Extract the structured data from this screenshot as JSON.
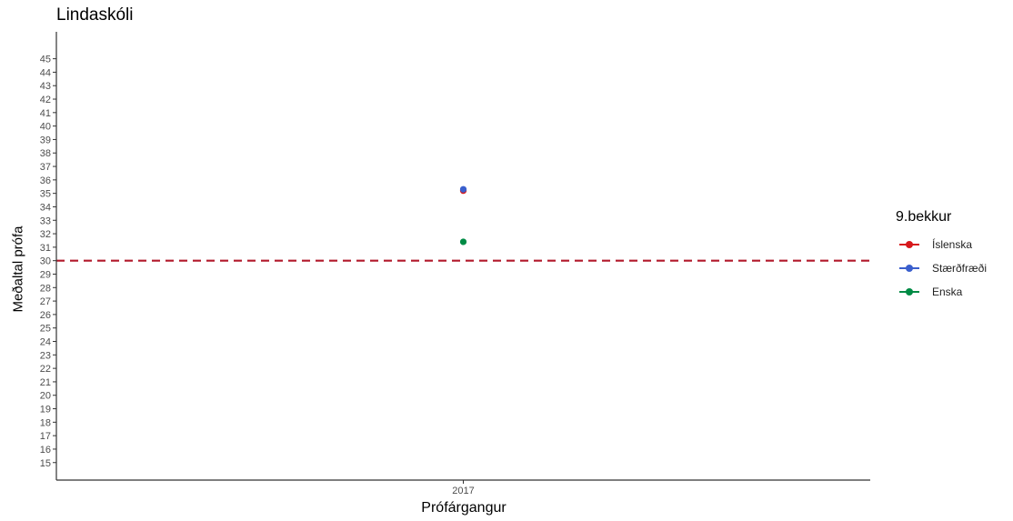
{
  "chart_data": {
    "type": "scatter",
    "title": "Lindaskóli",
    "xlabel": "Prófárgangur",
    "ylabel": "Meðaltal prófa",
    "categories": [
      "2017"
    ],
    "ylim": [
      13.7,
      47.0
    ],
    "yticks": [
      15,
      16,
      17,
      18,
      19,
      20,
      21,
      22,
      23,
      24,
      25,
      26,
      27,
      28,
      29,
      30,
      31,
      32,
      33,
      34,
      35,
      36,
      37,
      38,
      39,
      40,
      41,
      42,
      43,
      44,
      45
    ],
    "reference_line": {
      "y": 30.0,
      "color": "#b2182b",
      "style": "dashed"
    },
    "legend_title": "9.bekkur",
    "legend_position": "right",
    "grid": false,
    "series": [
      {
        "name": "Íslenska",
        "color": "#d7191c",
        "values": [
          35.2
        ]
      },
      {
        "name": "Stærðfræði",
        "color": "#3a5fcd",
        "values": [
          35.3
        ]
      },
      {
        "name": "Enska",
        "color": "#008b45",
        "values": [
          31.4
        ]
      }
    ]
  }
}
